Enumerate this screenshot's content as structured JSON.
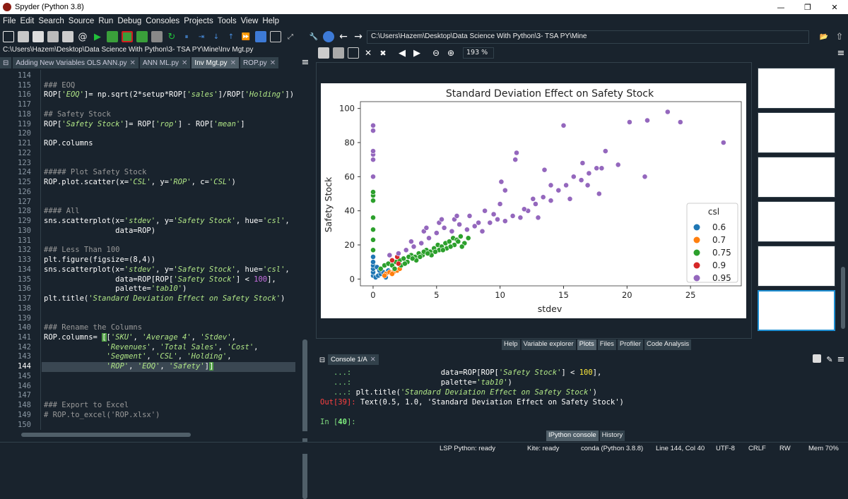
{
  "window": {
    "title": "Spyder (Python 3.8)",
    "min": "—",
    "max": "❐",
    "close": "✕"
  },
  "menu": [
    "File",
    "Edit",
    "Search",
    "Source",
    "Run",
    "Debug",
    "Consoles",
    "Projects",
    "Tools",
    "View",
    "Help"
  ],
  "toolbar": {
    "path": "C:\\Users\\Hazem\\Desktop\\Data Science With Python\\3- TSA PY\\Mine"
  },
  "editor": {
    "file_path": "C:\\Users\\Hazem\\Desktop\\Data Science With Python\\3- TSA PY\\Mine\\Inv Mgt.py",
    "tabs": [
      "Adding New Variables OLS ANN.py",
      "ANN ML.py",
      "Inv Mgt.py",
      "ROP.py"
    ],
    "active_tab": 2,
    "current_line": 144
  },
  "plots_toolbar": {
    "zoom": "193 %"
  },
  "plot": {
    "title": "Standard Deviation Effect on Safety Stock",
    "xlabel": "stdev",
    "ylabel": "Safety Stock",
    "legend_title": "csl"
  },
  "chart_data": {
    "type": "scatter",
    "title": "Standard Deviation Effect on Safety Stock",
    "xlabel": "stdev",
    "ylabel": "Safety Stock",
    "xlim": [
      -1,
      29
    ],
    "ylim": [
      -4,
      104
    ],
    "xticks": [
      "0",
      "5",
      "10",
      "15",
      "20",
      "25"
    ],
    "yticks": [
      "0",
      "20",
      "40",
      "60",
      "80",
      "100"
    ],
    "legend": {
      "title": "csl",
      "placement": "lower-right",
      "entries": [
        "0.6",
        "0.7",
        "0.75",
        "0.9",
        "0.95"
      ]
    },
    "series": [
      {
        "name": "0.6",
        "color": "#1f77b4",
        "points": [
          [
            0,
            2
          ],
          [
            0,
            4
          ],
          [
            0,
            6
          ],
          [
            0,
            8
          ],
          [
            0,
            10
          ],
          [
            0,
            13
          ],
          [
            0.2,
            1
          ],
          [
            0.4,
            2
          ],
          [
            0.6,
            3
          ],
          [
            0.8,
            4
          ],
          [
            1,
            1
          ],
          [
            1.2,
            5
          ],
          [
            0.3,
            7
          ],
          [
            0.5,
            5
          ]
        ]
      },
      {
        "name": "0.7",
        "color": "#ff7f0e",
        "points": [
          [
            1,
            3
          ],
          [
            1.3,
            4
          ],
          [
            1.6,
            4
          ],
          [
            1.9,
            5
          ],
          [
            2.1,
            6
          ],
          [
            0.9,
            2
          ],
          [
            1.5,
            3
          ]
        ]
      },
      {
        "name": "0.75",
        "color": "#2ca02c",
        "points": [
          [
            0,
            17
          ],
          [
            0,
            23
          ],
          [
            0,
            29
          ],
          [
            0,
            36
          ],
          [
            0,
            46
          ],
          [
            0,
            49
          ],
          [
            0,
            51
          ],
          [
            0.6,
            6
          ],
          [
            0.9,
            8
          ],
          [
            1.2,
            9
          ],
          [
            1.5,
            8
          ],
          [
            1.8,
            10
          ],
          [
            2.1,
            11
          ],
          [
            2.4,
            12
          ],
          [
            2.7,
            10
          ],
          [
            3,
            14
          ],
          [
            3.3,
            13
          ],
          [
            3.6,
            15
          ],
          [
            3.9,
            14
          ],
          [
            4.2,
            17
          ],
          [
            4.5,
            16
          ],
          [
            4.8,
            18
          ],
          [
            5.1,
            20
          ],
          [
            5.4,
            19
          ],
          [
            5.7,
            21
          ],
          [
            6,
            22
          ],
          [
            6.3,
            24
          ],
          [
            6.6,
            23
          ],
          [
            6.9,
            25
          ],
          [
            7.2,
            21
          ],
          [
            7.5,
            24
          ],
          [
            2.2,
            8
          ],
          [
            2.8,
            13
          ],
          [
            3.4,
            11
          ],
          [
            4,
            16
          ],
          [
            4.6,
            14
          ],
          [
            5.2,
            17
          ],
          [
            5.8,
            18
          ],
          [
            6.4,
            20
          ],
          [
            7,
            19
          ],
          [
            1.7,
            6
          ],
          [
            2.5,
            9
          ],
          [
            3.1,
            12
          ],
          [
            3.7,
            13
          ],
          [
            4.3,
            15
          ],
          [
            4.9,
            16
          ],
          [
            5.5,
            17
          ],
          [
            6.1,
            19
          ],
          [
            6.7,
            22
          ]
        ]
      },
      {
        "name": "0.9",
        "color": "#d62728",
        "points": [
          [
            1.5,
            11
          ],
          [
            2,
            9
          ],
          [
            1.9,
            13
          ]
        ]
      },
      {
        "name": "0.95",
        "color": "#9467bd",
        "points": [
          [
            0,
            60
          ],
          [
            0,
            70
          ],
          [
            0,
            73
          ],
          [
            0,
            75
          ],
          [
            0,
            87
          ],
          [
            0,
            90
          ],
          [
            1.3,
            14
          ],
          [
            2,
            15
          ],
          [
            2.6,
            17
          ],
          [
            3.2,
            19
          ],
          [
            3.8,
            21
          ],
          [
            4.4,
            24
          ],
          [
            5,
            27
          ],
          [
            5.6,
            30
          ],
          [
            6.2,
            28
          ],
          [
            6.8,
            32
          ],
          [
            7.4,
            29
          ],
          [
            8,
            31
          ],
          [
            8.6,
            28
          ],
          [
            9.2,
            33
          ],
          [
            9.8,
            35
          ],
          [
            10.4,
            34
          ],
          [
            11,
            37
          ],
          [
            11.6,
            36
          ],
          [
            12.2,
            40
          ],
          [
            12.8,
            44
          ],
          [
            13.4,
            48
          ],
          [
            14,
            46
          ],
          [
            14.6,
            52
          ],
          [
            15.2,
            55
          ],
          [
            15.8,
            60
          ],
          [
            16.4,
            58
          ],
          [
            17,
            62
          ],
          [
            17.6,
            65
          ],
          [
            4,
            28
          ],
          [
            5.2,
            33
          ],
          [
            6.4,
            35
          ],
          [
            7.6,
            37
          ],
          [
            8.8,
            40
          ],
          [
            10,
            44
          ],
          [
            10.4,
            52
          ],
          [
            10.1,
            57
          ],
          [
            11.2,
            70
          ],
          [
            11.3,
            74
          ],
          [
            13.5,
            64
          ],
          [
            14,
            55
          ],
          [
            15,
            90
          ],
          [
            16.5,
            68
          ],
          [
            17.8,
            50
          ],
          [
            18,
            65
          ],
          [
            18.3,
            75
          ],
          [
            19.3,
            67
          ],
          [
            20.2,
            92
          ],
          [
            21.4,
            60
          ],
          [
            21.6,
            93
          ],
          [
            23.2,
            98
          ],
          [
            24.2,
            92
          ],
          [
            27.6,
            80
          ],
          [
            3,
            22
          ],
          [
            4.2,
            30
          ],
          [
            5.4,
            35
          ],
          [
            6.6,
            37
          ],
          [
            9.5,
            38
          ],
          [
            11.9,
            41
          ],
          [
            12.6,
            47
          ],
          [
            15.5,
            47
          ],
          [
            16.9,
            55
          ],
          [
            13,
            36
          ],
          [
            8.3,
            33
          ]
        ]
      }
    ]
  },
  "plot_tabs": [
    "Help",
    "Variable explorer",
    "Plots",
    "Files",
    "Profiler",
    "Code Analysis"
  ],
  "console": {
    "tab": "Console 1/A",
    "prompt_in": "In [",
    "in_num": "40",
    "prompt_in_end": "]:",
    "out_label": "Out[39]:",
    "out_text": " Text(0.5, 1.0, 'Standard Deviation Effect on Safety Stock')"
  },
  "console_tabs": [
    "IPython console",
    "History"
  ],
  "status": {
    "lsp": "LSP Python: ready",
    "kite": "Kite: ready",
    "conda": "conda (Python 3.8.8)",
    "pos": "Line 144, Col 40",
    "enc": "UTF-8",
    "eol": "CRLF",
    "rw": "RW",
    "mem": "Mem 70%"
  }
}
